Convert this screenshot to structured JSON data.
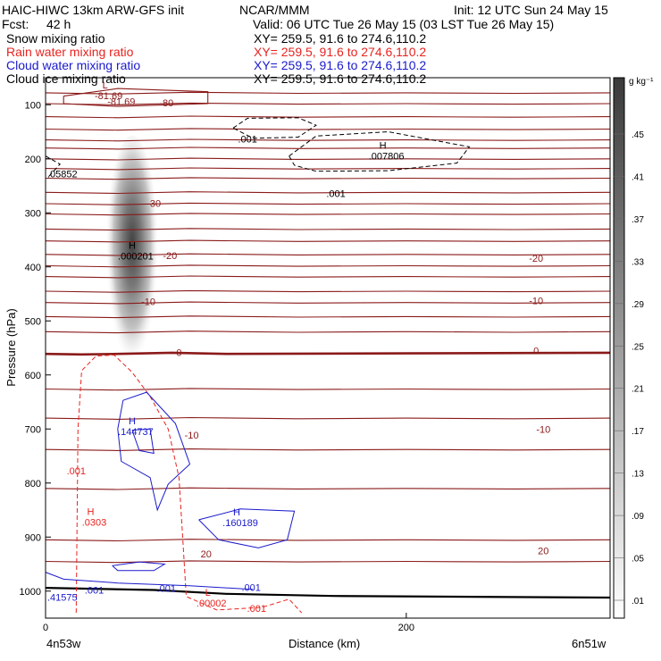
{
  "header": {
    "title": "HAIC-HIWC 13km ARW-GFS init",
    "org": "NCAR/MMM",
    "init": "Init: 12 UTC Sun 24 May 15",
    "fcst_label": "Fcst:",
    "fcst_value": "42 h",
    "valid": "Valid: 06 UTC Tue 26 May 15 (03 LST Tue 26 May 15)"
  },
  "fields": [
    {
      "name": "Snow mixing ratio",
      "xy": "XY= 259.5, 91.6 to 274.6,110.2",
      "color": "#000000"
    },
    {
      "name": "Rain water mixing ratio",
      "xy": "XY= 259.5, 91.6 to 274.6,110.2",
      "color": "#e8231f"
    },
    {
      "name": "Cloud water mixing ratio",
      "xy": "XY= 259.5, 91.6 to 274.6,110.2",
      "color": "#1a1acc"
    },
    {
      "name": "Cloud ice mixing ratio",
      "xy": "XY= 259.5, 91.6 to 274.6,110.2",
      "color": "#000000"
    }
  ],
  "colors": {
    "temperature": "#8b1a1a",
    "rain": "#e8231f",
    "cloud_water": "#1a1acc",
    "ice": "#000000"
  },
  "chart_data": {
    "type": "heatmap",
    "xlabel": "Distance (km)",
    "ylabel": "Pressure (hPa)",
    "xlim": [
      0,
      313
    ],
    "ylim": [
      1050,
      50
    ],
    "x_ticks": [
      0,
      200
    ],
    "y_ticks": [
      100,
      200,
      300,
      400,
      500,
      600,
      700,
      800,
      900,
      1000
    ],
    "x_endpoints": [
      "4n53w",
      "6n51w"
    ],
    "colorbar": {
      "unit": "g kg⁻¹",
      "levels": [
        ".01",
        ".05",
        ".09",
        ".13",
        ".17",
        ".21",
        ".25",
        ".29",
        ".33",
        ".37",
        ".41",
        ".45"
      ]
    },
    "temperature_labels": [
      {
        "text": "-81.69",
        "x": 42,
        "p": 94
      },
      {
        "text": "-80",
        "x": 67,
        "p": 96
      },
      {
        "text": "-30",
        "x": 60,
        "p": 282
      },
      {
        "text": "-20",
        "x": 69,
        "p": 379
      },
      {
        "text": "-20",
        "x": 272,
        "p": 384
      },
      {
        "text": "-10",
        "x": 57,
        "p": 464
      },
      {
        "text": "-10",
        "x": 272,
        "p": 462
      },
      {
        "text": "0",
        "x": 74,
        "p": 558
      },
      {
        "text": "0",
        "x": 272,
        "p": 555
      },
      {
        "text": "-10",
        "x": 81,
        "p": 711
      },
      {
        "text": "-10",
        "x": 276,
        "p": 700
      },
      {
        "text": "20",
        "x": 89,
        "p": 931
      },
      {
        "text": "20",
        "x": 276,
        "p": 925
      }
    ],
    "extrema": [
      {
        "letter": "L",
        "value": "-81.69",
        "x": 33,
        "p": 73,
        "color": "temperature"
      },
      {
        "letter": "H",
        "value": ".000201",
        "x": 48,
        "p": 370,
        "color": "ice"
      },
      {
        "letter": "H",
        "value": ".007806",
        "x": 187,
        "p": 185,
        "color": "ice"
      },
      {
        "letter": "H",
        "value": ".144737",
        "x": 48,
        "p": 695,
        "color": "cloud_water"
      },
      {
        "letter": "H",
        "value": ".160189",
        "x": 106,
        "p": 863,
        "color": "cloud_water"
      },
      {
        "letter": "H",
        "value": ".0303",
        "x": 25,
        "p": 862,
        "color": "rain"
      },
      {
        "letter": "L",
        "value": ".00002",
        "x": 90,
        "p": 1012,
        "color": "rain"
      }
    ],
    "contour_labels": [
      {
        "text": ".001",
        "x": 112,
        "p": 163,
        "color": "ice"
      },
      {
        "text": ".001",
        "x": 161,
        "p": 264,
        "color": "ice"
      },
      {
        "text": ".05852",
        "x": 0,
        "p": 228,
        "color": "ice"
      },
      {
        "text": ".001",
        "x": 17,
        "p": 777,
        "color": "rain"
      },
      {
        "text": ".001",
        "x": 117,
        "p": 1032,
        "color": "rain"
      },
      {
        "text": ".001",
        "x": 67,
        "p": 995,
        "color": "cloud_water"
      },
      {
        "text": ".001",
        "x": 114,
        "p": 993,
        "color": "cloud_water"
      },
      {
        "text": ".001",
        "x": 27,
        "p": 998,
        "color": "cloud_water"
      },
      {
        "text": ".41575",
        "x": 0,
        "p": 1011,
        "color": "cloud_water"
      }
    ]
  }
}
